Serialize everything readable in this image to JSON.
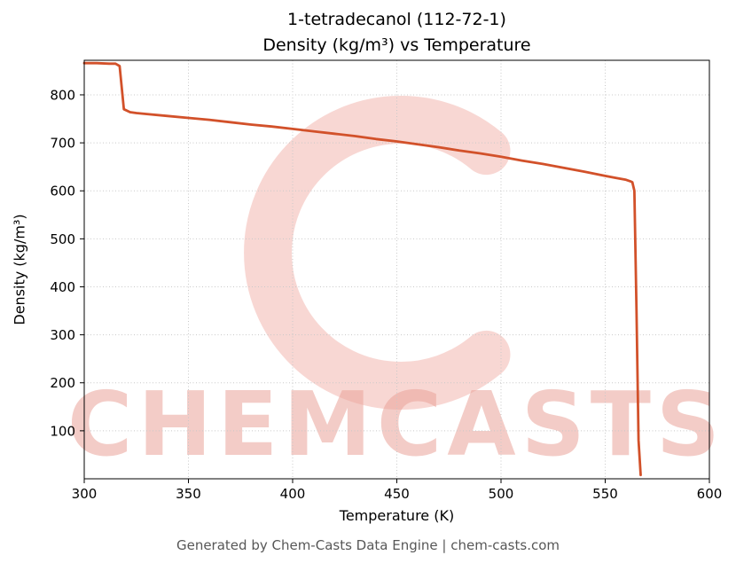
{
  "figure": {
    "watermark_text": "CHEMCASTS",
    "footer": "Generated by Chem-Casts Data Engine | chem-casts.com",
    "watermark_color": "#f2b6ae",
    "background_color": "#ffffff"
  },
  "chart_data": {
    "type": "line",
    "title": "1-tetradecanol (112-72-1)",
    "subtitle": "Density (kg/m³) vs Temperature",
    "xlabel": "Temperature (K)",
    "ylabel": "Density (kg/m³)",
    "xlim": [
      300,
      600
    ],
    "ylim": [
      0,
      872
    ],
    "xticks": [
      300,
      350,
      400,
      450,
      500,
      550,
      600
    ],
    "yticks": [
      100,
      200,
      300,
      400,
      500,
      600,
      700,
      800
    ],
    "grid": true,
    "grid_style": "dotted",
    "legend": "none",
    "line_color": "#d2512a",
    "series": [
      {
        "name": "Density",
        "points": [
          [
            300,
            866
          ],
          [
            306,
            866
          ],
          [
            312,
            865
          ],
          [
            315,
            865
          ],
          [
            317,
            860
          ],
          [
            319,
            770
          ],
          [
            322,
            764
          ],
          [
            325,
            762
          ],
          [
            330,
            760
          ],
          [
            340,
            756
          ],
          [
            350,
            752
          ],
          [
            360,
            748
          ],
          [
            370,
            743
          ],
          [
            380,
            738
          ],
          [
            390,
            734
          ],
          [
            400,
            729
          ],
          [
            410,
            724
          ],
          [
            420,
            719
          ],
          [
            430,
            714
          ],
          [
            440,
            708
          ],
          [
            450,
            703
          ],
          [
            460,
            697
          ],
          [
            470,
            691
          ],
          [
            480,
            684
          ],
          [
            490,
            678
          ],
          [
            500,
            671
          ],
          [
            510,
            663
          ],
          [
            520,
            656
          ],
          [
            530,
            648
          ],
          [
            540,
            640
          ],
          [
            550,
            631
          ],
          [
            555,
            627
          ],
          [
            560,
            623
          ],
          [
            562,
            620
          ],
          [
            563,
            618
          ],
          [
            564,
            600
          ],
          [
            565,
            350
          ],
          [
            566,
            80
          ],
          [
            567,
            8
          ]
        ]
      }
    ]
  }
}
